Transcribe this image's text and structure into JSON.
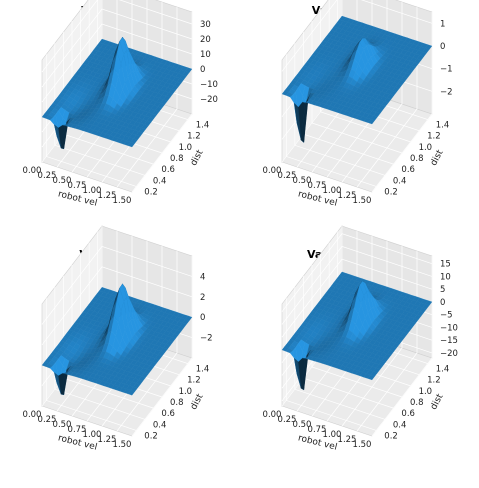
{
  "figure": {
    "panels": [
      {
        "title": "Value − Open"
      },
      {
        "title": "Value − Corridor"
      },
      {
        "title": "Value − Curve"
      },
      {
        "title": "Value − Obstacles"
      }
    ]
  },
  "chart_data": [
    {
      "type": "surface3d",
      "title": "Value − Open",
      "xlabel": "robot vel",
      "ylabel": "dist",
      "zlabel": "",
      "x_ticks": [
        "0.00",
        "0.25",
        "0.50",
        "0.75",
        "1.00",
        "1.25",
        "1.50"
      ],
      "y_ticks": [
        "0.2",
        "0.4",
        "0.6",
        "0.8",
        "1.0",
        "1.2",
        "1.4"
      ],
      "z_ticks": [
        "30",
        "20",
        "10",
        "0",
        "−10",
        "−20"
      ],
      "xlim": [
        0,
        1.5
      ],
      "ylim": [
        0.1,
        1.5
      ],
      "zlim": [
        -30,
        38
      ],
      "surface_color": "#1f77b4",
      "peak": {
        "x": 0.75,
        "y": 0.9,
        "z": 33
      },
      "trough": {
        "x": 0.25,
        "y": 0.2,
        "z": -28
      }
    },
    {
      "type": "surface3d",
      "title": "Value − Corridor",
      "xlabel": "robot vel",
      "ylabel": "dist",
      "zlabel": "",
      "x_ticks": [
        "0.00",
        "0.25",
        "0.50",
        "0.75",
        "1.00",
        "1.25",
        "1.50"
      ],
      "y_ticks": [
        "0.2",
        "0.4",
        "0.6",
        "0.8",
        "1.0",
        "1.2",
        "1.4"
      ],
      "z_ticks": [
        "1",
        "0",
        "−1",
        "−2"
      ],
      "xlim": [
        0,
        1.5
      ],
      "ylim": [
        0.1,
        1.5
      ],
      "zlim": [
        -3,
        1.5
      ],
      "surface_color": "#1f77b4",
      "peak": {
        "x": 0.75,
        "y": 0.9,
        "z": 1.1
      },
      "trough": {
        "x": 0.25,
        "y": 0.2,
        "z": -2.9
      }
    },
    {
      "type": "surface3d",
      "title": "Value − Curve",
      "xlabel": "robot vel",
      "ylabel": "dist",
      "zlabel": "",
      "x_ticks": [
        "0.00",
        "0.25",
        "0.50",
        "0.75",
        "1.00",
        "1.25",
        "1.50"
      ],
      "y_ticks": [
        "0.2",
        "0.4",
        "0.6",
        "0.8",
        "1.0",
        "1.2",
        "1.4"
      ],
      "z_ticks": [
        "4",
        "2",
        "0",
        "−2"
      ],
      "xlim": [
        0,
        1.5
      ],
      "ylim": [
        0.1,
        1.5
      ],
      "zlim": [
        -4,
        6
      ],
      "surface_color": "#1f77b4",
      "peak": {
        "x": 0.75,
        "y": 0.9,
        "z": 5
      },
      "trough": {
        "x": 0.25,
        "y": 0.2,
        "z": -3.8
      }
    },
    {
      "type": "surface3d",
      "title": "Value − Obstacles",
      "xlabel": "robot vel",
      "ylabel": "dist",
      "zlabel": "",
      "x_ticks": [
        "0.00",
        "0.25",
        "0.50",
        "0.75",
        "1.00",
        "1.25",
        "1.50"
      ],
      "y_ticks": [
        "0.2",
        "0.4",
        "0.6",
        "0.8",
        "1.0",
        "1.2",
        "1.4"
      ],
      "z_ticks": [
        "15",
        "10",
        "5",
        "0",
        "−5",
        "−10",
        "−15",
        "−20"
      ],
      "xlim": [
        0,
        1.5
      ],
      "ylim": [
        0.1,
        1.5
      ],
      "zlim": [
        -22,
        18
      ],
      "surface_color": "#1f77b4",
      "peak": {
        "x": 0.75,
        "y": 0.9,
        "z": 15
      },
      "trough": {
        "x": 0.25,
        "y": 0.2,
        "z": -21
      }
    }
  ]
}
